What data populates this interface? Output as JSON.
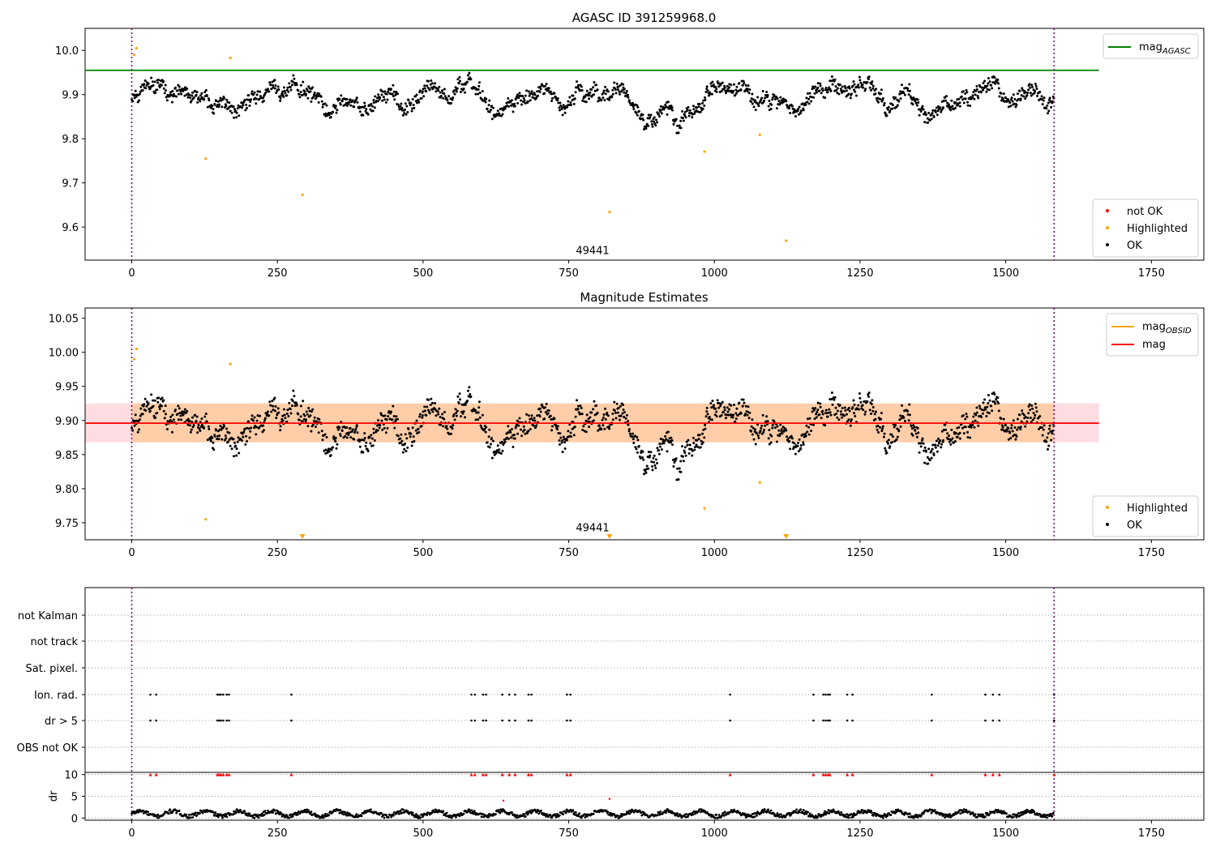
{
  "chart_data": [
    {
      "type": "scatter",
      "title": "AGASC ID 391259968.0",
      "xlim": [
        -80,
        1840
      ],
      "ylim": [
        9.525,
        10.05
      ],
      "xticks": [
        0,
        250,
        500,
        750,
        1000,
        1250,
        1500,
        1750
      ],
      "yticks": [
        9.6,
        9.7,
        9.8,
        9.9,
        10.0
      ],
      "yticks_decimals": 1,
      "vlines": [
        0,
        1583
      ],
      "obsid_label": {
        "text": "49441",
        "x": 791,
        "y": 9.535
      },
      "hline": {
        "name": "mag_AGASC",
        "y": 9.955,
        "xmin": -80,
        "xmax": 1660,
        "color": "#008000"
      },
      "highlighted": [
        [
          4,
          9.99
        ],
        [
          8,
          10.005
        ],
        [
          127,
          9.755
        ],
        [
          169,
          9.983
        ],
        [
          293,
          9.673
        ],
        [
          820,
          9.634
        ],
        [
          983,
          9.771
        ],
        [
          1078,
          9.809
        ],
        [
          1123,
          9.569
        ]
      ],
      "series_generated": {
        "name": "OK",
        "n": 1520,
        "x_max": 1583,
        "center": 9.895,
        "spread": 0.06,
        "color": "#000000"
      },
      "legend_series": [
        {
          "label": "mag",
          "sub": "AGASC",
          "kind": "line",
          "color": "#008000"
        }
      ],
      "legend_points": [
        {
          "label": "not OK",
          "color": "#ff0000"
        },
        {
          "label": "Highlighted",
          "color": "#ffa500"
        },
        {
          "label": "OK",
          "color": "#000000"
        }
      ]
    },
    {
      "type": "scatter",
      "title": "Magnitude Estimates",
      "xlim": [
        -80,
        1840
      ],
      "ylim": [
        9.725,
        10.065
      ],
      "xticks": [
        0,
        250,
        500,
        750,
        1000,
        1250,
        1500,
        1750
      ],
      "yticks": [
        9.75,
        9.8,
        9.85,
        9.9,
        9.95,
        10.0,
        10.05
      ],
      "yticks_decimals": 2,
      "vlines": [
        0,
        1583
      ],
      "obsid_label": {
        "text": "49441",
        "x": 791,
        "y": 9.735
      },
      "mean_line": {
        "name": "mag",
        "y": 9.896,
        "xmin": -80,
        "xmax": 1660,
        "color": "#ff0000"
      },
      "band": {
        "y0": 9.868,
        "y1": 9.925,
        "color": "#ff8080"
      },
      "inner_band": {
        "y0": 9.868,
        "y1": 9.925,
        "xmin": 0,
        "xmax": 1583,
        "color": "#ffa500"
      },
      "highlighted": [
        [
          4,
          9.99
        ],
        [
          8,
          10.005
        ],
        [
          127,
          9.755
        ],
        [
          169,
          9.983
        ],
        [
          983,
          9.771
        ],
        [
          1078,
          9.809
        ]
      ],
      "off_scale_markers": [
        293,
        820,
        1123
      ],
      "series_generated": {
        "name": "OK",
        "n": 1520,
        "x_max": 1583,
        "center": 9.895,
        "spread": 0.06,
        "color": "#000000"
      },
      "legend_series": [
        {
          "label": "mag",
          "sub": "OBSID",
          "kind": "line",
          "color": "#ffa500"
        },
        {
          "label": "mag",
          "sub": "",
          "kind": "line",
          "color": "#ff0000"
        }
      ],
      "legend_points": [
        {
          "label": "Highlighted",
          "color": "#ffa500"
        },
        {
          "label": "OK",
          "color": "#000000"
        }
      ]
    },
    {
      "type": "scatter",
      "title": "",
      "xlim": [
        -80,
        1840
      ],
      "xticks": [
        0,
        250,
        500,
        750,
        1000,
        1250,
        1500,
        1750
      ],
      "flag_rows": [
        "not Kalman",
        "not track",
        "Sat. pixel.",
        "Ion. rad.",
        "dr > 5",
        "OBS not OK"
      ],
      "flag_events_x": [
        32,
        42,
        147,
        150,
        153,
        157,
        163,
        167,
        274,
        583,
        589,
        603,
        608,
        636,
        648,
        658,
        681,
        686,
        747,
        753,
        1027,
        1170,
        1187,
        1191,
        1195,
        1198,
        1228,
        1237,
        1373,
        1465,
        1478,
        1489,
        1583
      ],
      "flag_rows_with_events": [
        "Ion. rad.",
        "dr > 5"
      ],
      "dr_yticks": [
        0,
        5,
        10
      ],
      "dr_ylabel": "dr",
      "dr_ylim": [
        -0.5,
        10.5
      ],
      "dr_outliers": [
        [
          638,
          4.0
        ],
        [
          820,
          4.4
        ]
      ],
      "dr_generated": {
        "name": "dr",
        "n": 1300,
        "x_max": 1583,
        "center": 1.0,
        "spread": 1.0
      },
      "vlines": [
        0,
        1583
      ]
    }
  ]
}
